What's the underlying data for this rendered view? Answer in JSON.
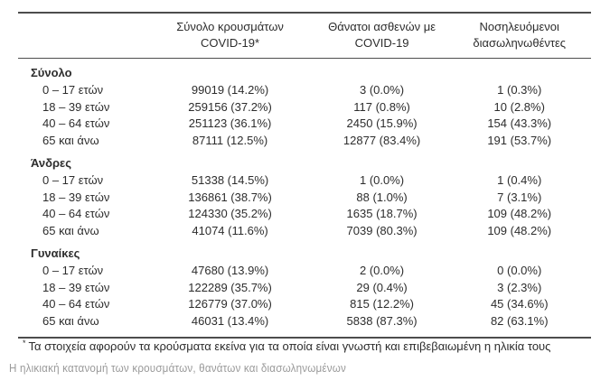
{
  "table": {
    "header": {
      "cases_line1": "Σύνολο κρουσμάτων",
      "cases_line2": "COVID-19*",
      "deaths_line1": "Θάνατοι ασθενών με",
      "deaths_line2": "COVID-19",
      "icu_line1": "Νοσηλευόμενοι",
      "icu_line2": "διασωληνωθέντες"
    },
    "sections": [
      {
        "label": "Σύνολο",
        "rows": [
          {
            "age": "0 – 17 ετών",
            "cases": "99019 (14.2%)",
            "deaths": "3 (0.0%)",
            "icu": "1 (0.3%)"
          },
          {
            "age": "18 – 39 ετών",
            "cases": "259156 (37.2%)",
            "deaths": "117 (0.8%)",
            "icu": "10 (2.8%)"
          },
          {
            "age": "40 – 64 ετών",
            "cases": "251123 (36.1%)",
            "deaths": "2450 (15.9%)",
            "icu": "154 (43.3%)"
          },
          {
            "age": "65 και άνω",
            "cases": "87111 (12.5%)",
            "deaths": "12877 (83.4%)",
            "icu": "191 (53.7%)"
          }
        ]
      },
      {
        "label": "Άνδρες",
        "rows": [
          {
            "age": "0 – 17 ετών",
            "cases": "51338 (14.5%)",
            "deaths": "1 (0.0%)",
            "icu": "1 (0.4%)"
          },
          {
            "age": "18 – 39 ετών",
            "cases": "136861 (38.7%)",
            "deaths": "88 (1.0%)",
            "icu": "7 (3.1%)"
          },
          {
            "age": "40 – 64 ετών",
            "cases": "124330 (35.2%)",
            "deaths": "1635 (18.7%)",
            "icu": "109 (48.2%)"
          },
          {
            "age": "65 και άνω",
            "cases": "41074 (11.6%)",
            "deaths": "7039 (80.3%)",
            "icu": "109 (48.2%)"
          }
        ]
      },
      {
        "label": "Γυναίκες",
        "rows": [
          {
            "age": "0 – 17 ετών",
            "cases": "47680 (13.9%)",
            "deaths": "2 (0.0%)",
            "icu": "0 (0.0%)"
          },
          {
            "age": "18 – 39 ετών",
            "cases": "122289 (35.7%)",
            "deaths": "29 (0.4%)",
            "icu": "3 (2.3%)"
          },
          {
            "age": "40 – 64 ετών",
            "cases": "126779 (37.0%)",
            "deaths": "815 (12.2%)",
            "icu": "45 (34.6%)"
          },
          {
            "age": "65 και άνω",
            "cases": "46031 (13.4%)",
            "deaths": "5838 (87.3%)",
            "icu": "82 (63.1%)"
          }
        ]
      }
    ]
  },
  "footnote": {
    "marker": "*",
    "text": "Τα στοιχεία αφορούν τα κρούσματα εκείνα για τα οποία είναι γνωστή και επιβεβαιωμένη η ηλικία τους"
  },
  "caption": "Η ηλικιακή κατανομή των κρουσμάτων, θανάτων και διασωληνωμένων",
  "colors": {
    "text": "#2d2d2d",
    "rule": "#4d4d4d",
    "caption_text": "#9a9a9a",
    "background": "#ffffff"
  }
}
